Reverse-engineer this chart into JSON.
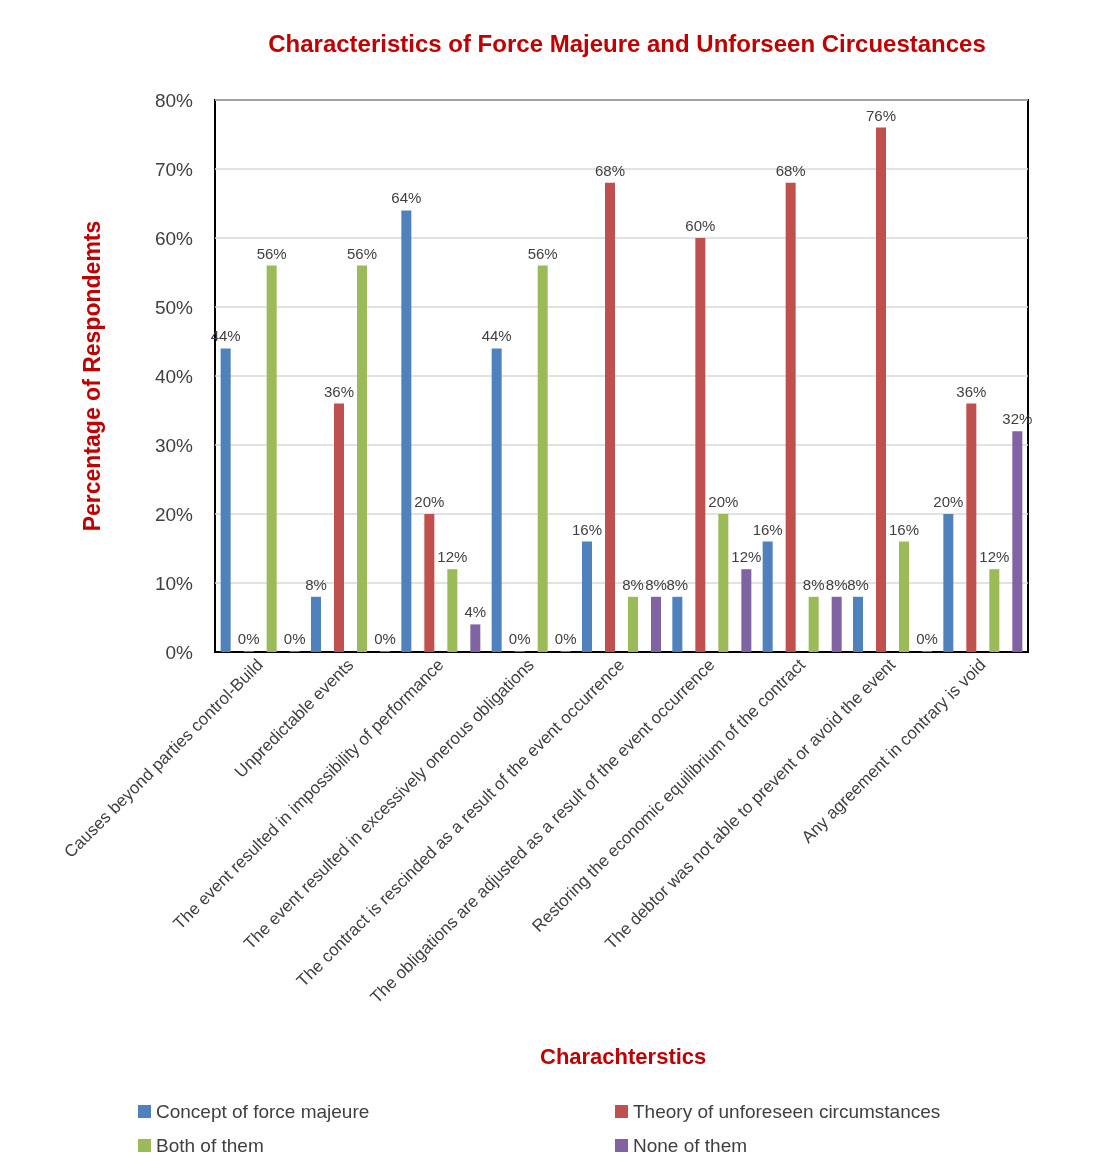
{
  "chart_data": {
    "type": "bar",
    "title": "Characteristics of Force Majeure and Unforseen Circuestances",
    "xlabel": "Charachterstics",
    "ylabel": "Percentage of Respondemts",
    "categories": [
      "Causes beyond parties control-Build",
      "Unpredictable events",
      "The event resulted in impossibility of performance",
      "The event resulted in excessively onerous obligations",
      "The contract is rescinded as a result of the event occurrence",
      "The obligations are adjusted as a result of the event occurrence",
      "Restoring the economic equilibrium of the contract",
      "The debtor was not able to prevent or avoid the event",
      "Any agreement in contrary is void"
    ],
    "series": [
      {
        "name": "Concept of force majeure",
        "color": "#4f81bd",
        "values": [
          44,
          8,
          64,
          44,
          16,
          8,
          16,
          8,
          20
        ],
        "value_labels": [
          "44%",
          "8%",
          "64%",
          "44%",
          "16%",
          "8%",
          "16%",
          "8%",
          "20%"
        ]
      },
      {
        "name": "Theory of unforeseen circumstances",
        "color": "#c0504d",
        "values": [
          0,
          36,
          20,
          0,
          68,
          60,
          68,
          76,
          36
        ],
        "value_labels": [
          "0%",
          "36%",
          "20%",
          "0%",
          "68%",
          "60%",
          "68%",
          "76%",
          "36%"
        ]
      },
      {
        "name": "Both of them",
        "color": "#9bbb59",
        "values": [
          56,
          56,
          12,
          56,
          8,
          20,
          8,
          16,
          12
        ],
        "value_labels": [
          "56%",
          "56%",
          "12%",
          "56%",
          "8%",
          "20%",
          "8%",
          "16%",
          "12%"
        ]
      },
      {
        "name": "None of them",
        "color": "#8064a2",
        "values": [
          0,
          0,
          4,
          0,
          8,
          12,
          8,
          0,
          32
        ],
        "value_labels": [
          "0%",
          "0%",
          "4%",
          "0%",
          "8%",
          "12%",
          "8%",
          "0%",
          "32%"
        ]
      }
    ],
    "ylim": [
      0,
      80
    ],
    "yticks": [
      {
        "value": 0,
        "label": "0%"
      },
      {
        "value": 10,
        "label": "10%"
      },
      {
        "value": 20,
        "label": "20%"
      },
      {
        "value": 30,
        "label": "30%"
      },
      {
        "value": 40,
        "label": "40%"
      },
      {
        "value": 50,
        "label": "50%"
      },
      {
        "value": 60,
        "label": "60%"
      },
      {
        "value": 70,
        "label": "70%"
      },
      {
        "value": 80,
        "label": "80%"
      }
    ],
    "grid": "y",
    "legend": "bottom"
  }
}
